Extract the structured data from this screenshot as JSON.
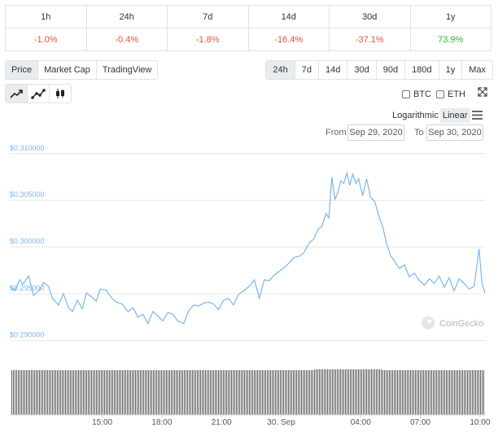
{
  "performance": {
    "periods": [
      "1h",
      "24h",
      "7d",
      "14d",
      "30d",
      "1y"
    ],
    "changes": [
      "-1.0%",
      "-0.4%",
      "-1.8%",
      "-16.4%",
      "-37.1%",
      "73.9%"
    ]
  },
  "view_tabs": [
    "Price",
    "Market Cap",
    "TradingView"
  ],
  "range_buttons": [
    "24h",
    "7d",
    "14d",
    "30d",
    "90d",
    "180d",
    "1y",
    "Max"
  ],
  "chart_type_buttons": [
    "line-chart-icon",
    "point-line-chart-icon",
    "candlestick-icon"
  ],
  "compare": {
    "btc": "BTC",
    "eth": "ETH"
  },
  "scale": {
    "log": "Logarithmic",
    "linear": "Linear"
  },
  "date_range": {
    "from_label": "From",
    "from": "Sep 29, 2020",
    "to_label": "To",
    "to": "Sep 30, 2020"
  },
  "watermark": "CoinGecko",
  "colors": {
    "line": "#7cb5ec",
    "negative": "#e15241",
    "positive": "#2bb52b",
    "volume": "#5a5a5a",
    "axis_label": "#7cb5ec"
  },
  "chart_data": {
    "type": "line",
    "title": "",
    "xlabel": "",
    "ylabel": "",
    "ylim": [
      0.289,
      0.3112
    ],
    "y_ticks": [
      {
        "value": 0.31,
        "label": "$0.310000"
      },
      {
        "value": 0.305,
        "label": "$0.305000"
      },
      {
        "value": 0.3,
        "label": "$0.300000"
      },
      {
        "value": 0.295,
        "label": "$0.295000"
      },
      {
        "value": 0.29,
        "label": "$0.290000"
      }
    ],
    "x_ticks": [
      {
        "x": 15.0,
        "label": "15:00"
      },
      {
        "x": 18.0,
        "label": "18:00"
      },
      {
        "x": 21.0,
        "label": "21:00"
      },
      {
        "x": 24.0,
        "label": "30. Sep"
      },
      {
        "x": 28.0,
        "label": "04:00"
      },
      {
        "x": 31.0,
        "label": "07:00"
      },
      {
        "x": 34.0,
        "label": "10:00"
      }
    ],
    "xlim": [
      10.35,
      34.25
    ],
    "grid": true,
    "legend": "none",
    "series": [
      {
        "x": [
          10.35,
          10.6,
          10.85,
          11.0,
          11.3,
          11.55,
          11.85,
          12.05,
          12.3,
          12.5,
          12.8,
          13.05,
          13.3,
          13.5,
          13.75,
          14.0,
          14.2,
          14.45,
          14.7,
          14.9,
          15.2,
          15.45,
          15.7,
          16.0,
          16.3,
          16.55,
          16.8,
          17.05,
          17.3,
          17.55,
          17.8,
          18.05,
          18.3,
          18.55,
          18.8,
          19.1,
          19.35,
          19.6,
          19.85,
          20.1,
          20.35,
          20.6,
          20.85,
          21.1,
          21.35,
          21.6,
          21.85,
          22.1,
          22.4,
          22.65,
          22.9,
          23.15,
          23.4,
          23.65,
          23.9,
          24.15,
          24.4,
          24.65,
          24.9,
          25.15,
          25.4,
          25.65,
          25.85,
          26.05,
          26.25,
          26.4,
          26.55,
          26.7,
          26.85,
          27.0,
          27.15,
          27.3,
          27.45,
          27.6,
          27.75,
          27.9,
          28.1,
          28.3,
          28.5,
          28.7,
          28.9,
          29.1,
          29.3,
          29.5,
          29.7,
          29.95,
          30.2,
          30.45,
          30.7,
          30.95,
          31.2,
          31.45,
          31.7,
          31.95,
          32.2,
          32.45,
          32.7,
          32.95,
          33.2,
          33.45,
          33.7,
          33.95,
          34.1,
          34.25
        ],
        "y": [
          0.2958,
          0.2953,
          0.2965,
          0.296,
          0.2969,
          0.2948,
          0.2954,
          0.2962,
          0.2958,
          0.2945,
          0.2938,
          0.295,
          0.2935,
          0.2931,
          0.2943,
          0.2934,
          0.2951,
          0.2947,
          0.2942,
          0.2955,
          0.2954,
          0.2946,
          0.2941,
          0.2939,
          0.2931,
          0.2935,
          0.2925,
          0.2928,
          0.2918,
          0.2931,
          0.2926,
          0.2921,
          0.293,
          0.2928,
          0.2921,
          0.2918,
          0.2932,
          0.2938,
          0.2937,
          0.294,
          0.2941,
          0.2939,
          0.2933,
          0.2943,
          0.2945,
          0.2938,
          0.2949,
          0.2953,
          0.2958,
          0.2965,
          0.2945,
          0.2965,
          0.2964,
          0.297,
          0.2974,
          0.2978,
          0.2983,
          0.2989,
          0.299,
          0.2994,
          0.3004,
          0.3009,
          0.3019,
          0.3022,
          0.3036,
          0.3031,
          0.3075,
          0.3051,
          0.3058,
          0.3071,
          0.3068,
          0.3079,
          0.3066,
          0.3078,
          0.3068,
          0.3073,
          0.3055,
          0.3073,
          0.3053,
          0.3049,
          0.3034,
          0.3022,
          0.3004,
          0.2991,
          0.2985,
          0.2977,
          0.2981,
          0.2968,
          0.2972,
          0.2964,
          0.2959,
          0.2966,
          0.2961,
          0.2969,
          0.2957,
          0.2967,
          0.2953,
          0.2966,
          0.2961,
          0.2955,
          0.2958,
          0.2998,
          0.2961,
          0.2951
        ]
      }
    ]
  }
}
